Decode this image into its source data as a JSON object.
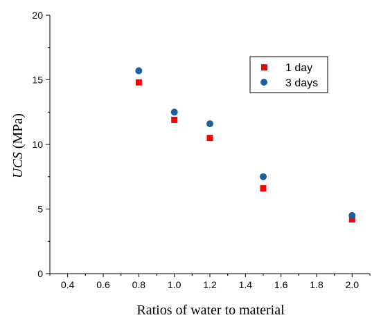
{
  "chart_data": {
    "type": "scatter",
    "xlabel": "Ratios of water to material",
    "ylabel_italic": "UCS",
    "ylabel_rest": " (MPa)",
    "xlim": [
      0.3,
      2.1
    ],
    "ylim": [
      0,
      20
    ],
    "xticks": [
      "0.4",
      "0.6",
      "0.8",
      "1.0",
      "1.2",
      "1.4",
      "1.6",
      "1.8",
      "2.0"
    ],
    "yticks": [
      "0",
      "5",
      "10",
      "15",
      "20"
    ],
    "grid": false,
    "legend_position": "top-right",
    "series": [
      {
        "name": "1 day",
        "marker": "square",
        "color": "#ff0000",
        "x": [
          0.8,
          1.0,
          1.2,
          1.5,
          2.0
        ],
        "y": [
          14.8,
          11.9,
          10.5,
          6.6,
          4.2
        ]
      },
      {
        "name": "3 days",
        "marker": "circle",
        "color": "#1a5fa0",
        "x": [
          0.8,
          1.0,
          1.2,
          1.5,
          2.0
        ],
        "y": [
          15.7,
          12.5,
          11.6,
          7.5,
          4.5
        ]
      }
    ]
  }
}
